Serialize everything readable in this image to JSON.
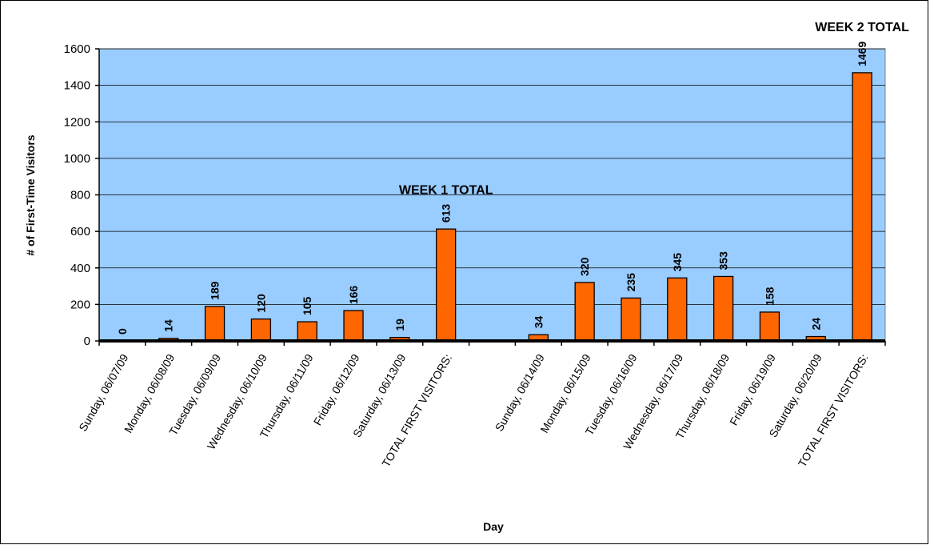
{
  "chart_data": {
    "type": "bar",
    "title": "",
    "xlabel": "Day",
    "ylabel": "# of First-Time Visitors",
    "ylim": [
      0,
      1600
    ],
    "yticks": [
      0,
      200,
      400,
      600,
      800,
      1000,
      1200,
      1400,
      1600
    ],
    "grid": true,
    "legend": "none",
    "categories": [
      "Sunday, 06/07/09",
      "Monday, 06/08/09",
      "Tuesday, 06/09/09",
      "Wednesday, 06/10/09",
      "Thursday, 06/11/09",
      "Friday, 06/12/09",
      "Saturday, 06/13/09",
      "TOTAL FIRST VISITORS:",
      "",
      "Sunday, 06/14/09",
      "Monday, 06/15/09",
      "Tuesday, 06/16/09",
      "Wednesday, 06/17/09",
      "Thursday, 06/18/09",
      "Friday, 06/19/09",
      "Saturday, 06/20/09",
      "TOTAL FIRST VISITORS:"
    ],
    "values": [
      0,
      14,
      189,
      120,
      105,
      166,
      19,
      613,
      null,
      34,
      320,
      235,
      345,
      353,
      158,
      24,
      1469
    ],
    "data_labels": [
      "0",
      "14",
      "189",
      "120",
      "105",
      "166",
      "19",
      "613",
      "",
      "34",
      "320",
      "235",
      "345",
      "353",
      "158",
      "24",
      "1469"
    ],
    "annotations": [
      {
        "text": "WEEK 1 TOTAL",
        "category_index": 7
      },
      {
        "text": "WEEK 2 TOTAL",
        "category_index": 16
      }
    ],
    "colors": {
      "bar": "#ff6600",
      "bar_border": "#000000",
      "plot_background": "#99ccff",
      "gridline": "#000000"
    }
  }
}
